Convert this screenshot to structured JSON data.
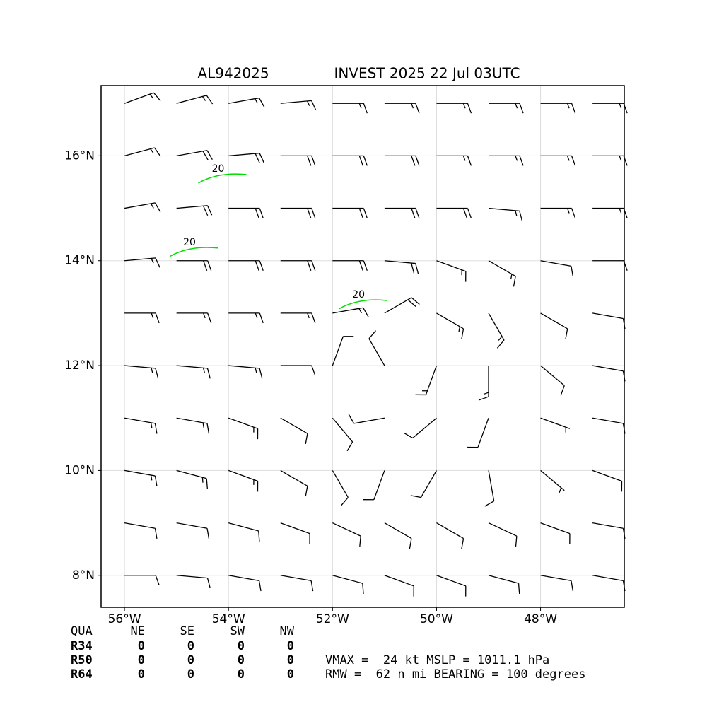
{
  "map": {
    "type": "wind-barbs",
    "title_left": "AL942025",
    "title_right": "INVEST 2025 22 Jul 03UTC",
    "xlim": [
      -56.45,
      -46.39
    ],
    "ylim": [
      7.39,
      17.34
    ],
    "xticks": [
      {
        "value": -56,
        "label": "56°W"
      },
      {
        "value": -54,
        "label": "54°W"
      },
      {
        "value": -52,
        "label": "52°W"
      },
      {
        "value": -50,
        "label": "50°W"
      },
      {
        "value": -48,
        "label": "48°W"
      }
    ],
    "yticks": [
      {
        "value": 8,
        "label": "8°N"
      },
      {
        "value": 10,
        "label": "10°N"
      },
      {
        "value": 12,
        "label": "12°N"
      },
      {
        "value": 14,
        "label": "14°N"
      },
      {
        "value": 16,
        "label": "16°N"
      }
    ],
    "grid": true,
    "barb_color": "#000000",
    "contour_color": "#00dd00",
    "wind": {
      "lon": [
        -56,
        -55,
        -54,
        -53,
        -52,
        -51,
        -50,
        -49,
        -48,
        -47
      ],
      "lat": [
        17,
        16,
        15,
        14,
        13,
        12,
        11,
        10,
        9,
        8
      ],
      "direction": [
        [
          70,
          75,
          80,
          85,
          90,
          90,
          90,
          90,
          90,
          90
        ],
        [
          75,
          80,
          85,
          90,
          90,
          90,
          90,
          90,
          90,
          90
        ],
        [
          80,
          85,
          90,
          90,
          90,
          90,
          90,
          95,
          90,
          90
        ],
        [
          85,
          90,
          90,
          90,
          90,
          95,
          110,
          120,
          100,
          90
        ],
        [
          90,
          90,
          90,
          90,
          80,
          60,
          120,
          150,
          120,
          100
        ],
        [
          95,
          95,
          95,
          90,
          20,
          330,
          200,
          180,
          130,
          100
        ],
        [
          100,
          100,
          110,
          120,
          140,
          260,
          230,
          200,
          110,
          100
        ],
        [
          100,
          105,
          110,
          120,
          150,
          200,
          210,
          170,
          130,
          110
        ],
        [
          100,
          100,
          105,
          110,
          115,
          120,
          120,
          115,
          110,
          100
        ],
        [
          90,
          95,
          100,
          100,
          105,
          110,
          110,
          105,
          100,
          100
        ]
      ],
      "speed": [
        [
          15,
          15,
          15,
          15,
          15,
          15,
          15,
          15,
          15,
          15
        ],
        [
          15,
          20,
          20,
          20,
          20,
          20,
          15,
          15,
          15,
          15
        ],
        [
          15,
          20,
          20,
          20,
          20,
          20,
          20,
          15,
          15,
          15
        ],
        [
          15,
          20,
          20,
          20,
          20,
          20,
          15,
          15,
          10,
          10
        ],
        [
          15,
          15,
          15,
          15,
          15,
          20,
          15,
          15,
          10,
          10
        ],
        [
          15,
          15,
          15,
          10,
          10,
          10,
          15,
          15,
          10,
          10
        ],
        [
          15,
          15,
          15,
          10,
          10,
          10,
          10,
          10,
          5,
          10
        ],
        [
          15,
          15,
          15,
          10,
          10,
          10,
          10,
          10,
          5,
          10
        ],
        [
          10,
          10,
          10,
          10,
          10,
          10,
          10,
          10,
          10,
          10
        ],
        [
          10,
          10,
          10,
          10,
          10,
          10,
          10,
          10,
          10,
          10
        ]
      ]
    },
    "contour_labels": [
      {
        "text": "20",
        "lon": -54.2,
        "lat": 15.75
      },
      {
        "text": "20",
        "lon": -54.75,
        "lat": 14.35
      },
      {
        "text": "20",
        "lon": -51.5,
        "lat": 13.35
      }
    ]
  },
  "quadrant_table": {
    "header": [
      "QUA",
      "NE",
      "SE",
      "SW",
      "NW"
    ],
    "rows": [
      [
        "R34",
        0,
        0,
        0,
        0
      ],
      [
        "R50",
        0,
        0,
        0,
        0
      ],
      [
        "R64",
        0,
        0,
        0,
        0
      ]
    ]
  },
  "summary": [
    "VMAX =  24 kt MSLP = 1011.1 hPa",
    "RMW =  62 n mi BEARING = 100 degrees"
  ]
}
